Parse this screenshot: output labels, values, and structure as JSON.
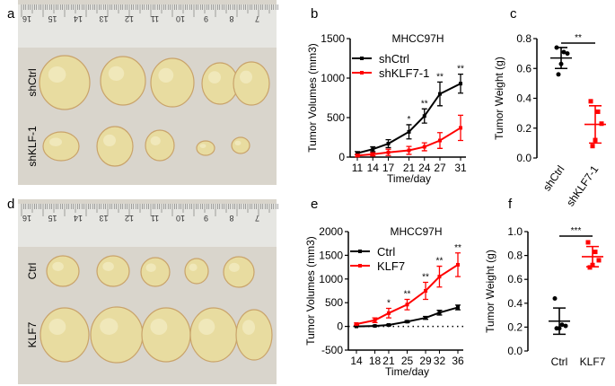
{
  "panels": {
    "a": "a",
    "b": "b",
    "c": "c",
    "d": "d",
    "e": "e",
    "f": "f"
  },
  "photos": [
    {
      "ruler_numbers": [
        "16",
        "15",
        "14",
        "13",
        "12",
        "11",
        "10",
        "9",
        "8",
        "7"
      ],
      "row_labels": [
        "shCtrl",
        "shKLF-1"
      ]
    },
    {
      "ruler_numbers": [
        "16",
        "15",
        "14",
        "13",
        "12",
        "11",
        "10",
        "9",
        "8",
        "7"
      ],
      "row_labels": [
        "Ctrl",
        "KLF7"
      ]
    }
  ],
  "colors": {
    "control": "#000000",
    "treatment": "#ff0000",
    "tumor": "#e8dca0",
    "ruler": "#e6e6e2",
    "background_photo": "#d9d5cc"
  },
  "chart_data": [
    {
      "type": "line",
      "panel": "b",
      "title": "MHCC97H",
      "xlabel": "Time/day",
      "ylabel": "Tumor Volumes (mm3)",
      "ylim": [
        0,
        1500
      ],
      "yticks": [
        "0",
        "500",
        "1000",
        "1500"
      ],
      "x": [
        11,
        14,
        17,
        21,
        24,
        27,
        31
      ],
      "xticks": [
        "11",
        "14",
        "17",
        "21",
        "24",
        "27",
        "31"
      ],
      "legend": "top-left",
      "series": [
        {
          "name": "shCtrl",
          "color": "#000000",
          "values": [
            50,
            100,
            170,
            320,
            520,
            800,
            930
          ],
          "error": [
            20,
            30,
            50,
            90,
            90,
            150,
            120
          ]
        },
        {
          "name": "shKLF7-1",
          "color": "#ff0000",
          "values": [
            20,
            35,
            60,
            85,
            130,
            210,
            370
          ],
          "error": [
            15,
            20,
            40,
            50,
            50,
            100,
            160
          ]
        }
      ],
      "significance": [
        "",
        "",
        "",
        "*",
        "**",
        "**",
        "**"
      ]
    },
    {
      "type": "scatter",
      "panel": "c",
      "ylabel": "Tumor Weight (g)",
      "ylim": [
        0,
        0.8
      ],
      "yticks": [
        "0.0",
        "0.2",
        "0.4",
        "0.6",
        "0.8"
      ],
      "categories": [
        "shCtrl",
        "shKLF7-1"
      ],
      "groups": [
        {
          "name": "shCtrl",
          "color": "#000000",
          "points": [
            0.74,
            0.71,
            0.7,
            0.63,
            0.56
          ],
          "mean": 0.67,
          "sd": 0.07
        },
        {
          "name": "shKLF7-1",
          "color": "#ff0000",
          "points": [
            0.38,
            0.31,
            0.23,
            0.12,
            0.08
          ],
          "mean": 0.225,
          "sd": 0.125
        }
      ],
      "significance": "**"
    },
    {
      "type": "line",
      "panel": "e",
      "title": "MHCC97H",
      "xlabel": "Time/day",
      "ylabel": "Tumor Volumes (mm3)",
      "ylim": [
        -500,
        2000
      ],
      "yticks": [
        "-500",
        "0",
        "500",
        "1000",
        "1500",
        "2000"
      ],
      "x": [
        14,
        18,
        21,
        25,
        29,
        32,
        36
      ],
      "xticks": [
        "14",
        "18",
        "21",
        "25",
        "29",
        "32",
        "36"
      ],
      "legend": "top-left",
      "zero_line": "dotted",
      "series": [
        {
          "name": "Ctrl",
          "color": "#000000",
          "values": [
            0,
            10,
            30,
            100,
            180,
            290,
            400
          ],
          "error": [
            5,
            10,
            15,
            20,
            30,
            50,
            50
          ]
        },
        {
          "name": "KLF7",
          "color": "#ff0000",
          "values": [
            50,
            130,
            280,
            460,
            750,
            1050,
            1300
          ],
          "error": [
            20,
            50,
            100,
            110,
            180,
            220,
            250
          ]
        }
      ],
      "significance": [
        "",
        "",
        "*",
        "**",
        "**",
        "**",
        "**"
      ]
    },
    {
      "type": "scatter",
      "panel": "f",
      "ylabel": "Tumor Weight (g)",
      "ylim": [
        0,
        1.0
      ],
      "yticks": [
        "0.0",
        "0.2",
        "0.4",
        "0.6",
        "0.8",
        "1.0"
      ],
      "categories": [
        "Ctrl",
        "KLF7"
      ],
      "groups": [
        {
          "name": "Ctrl",
          "color": "#000000",
          "points": [
            0.44,
            0.22,
            0.21,
            0.19,
            0.19
          ],
          "mean": 0.25,
          "sd": 0.11
        },
        {
          "name": "KLF7",
          "color": "#ff0000",
          "points": [
            0.91,
            0.83,
            0.76,
            0.72,
            0.7
          ],
          "mean": 0.79,
          "sd": 0.085
        }
      ],
      "significance": "***"
    }
  ]
}
